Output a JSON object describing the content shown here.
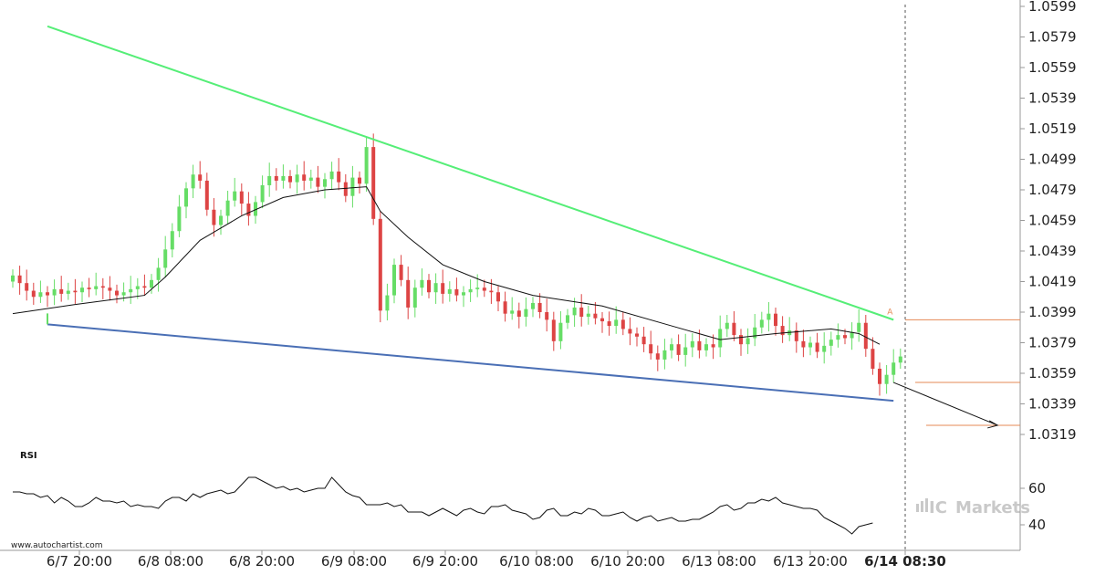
{
  "chart_data": [
    {
      "type": "candlestick",
      "price_ticks": [
        "1.0599",
        "1.0579",
        "1.0559",
        "1.0539",
        "1.0519",
        "1.0499",
        "1.0479",
        "1.0459",
        "1.0439",
        "1.0419",
        "1.0399",
        "1.0379",
        "1.0359",
        "1.0339",
        "1.0319"
      ],
      "ylim": [
        1.0309,
        1.0602
      ],
      "time_labels": [
        "6/7 20:00",
        "6/8 08:00",
        "6/8 20:00",
        "6/9 08:00",
        "6/9 20:00",
        "6/10 08:00",
        "6/10 20:00",
        "6/13 08:00",
        "6/13 20:00",
        "6/14 08:30"
      ],
      "highlight_time": "6/14 08:30",
      "candle_closes": [
        1.0423,
        1.0418,
        1.0413,
        1.0409,
        1.0412,
        1.041,
        1.0414,
        1.0411,
        1.0413,
        1.0412,
        1.0415,
        1.0414,
        1.0416,
        1.0415,
        1.0413,
        1.041,
        1.0412,
        1.0414,
        1.0416,
        1.0415,
        1.042,
        1.0428,
        1.044,
        1.0452,
        1.0468,
        1.048,
        1.0489,
        1.0485,
        1.0466,
        1.0456,
        1.0462,
        1.0472,
        1.0478,
        1.047,
        1.0462,
        1.0471,
        1.0482,
        1.0488,
        1.0485,
        1.0488,
        1.0484,
        1.0489,
        1.0485,
        1.0487,
        1.0481,
        1.0486,
        1.0491,
        1.0484,
        1.0475,
        1.0487,
        1.0483,
        1.0507,
        1.046,
        1.04,
        1.041,
        1.043,
        1.042,
        1.0402,
        1.0415,
        1.042,
        1.0412,
        1.0418,
        1.0411,
        1.0414,
        1.041,
        1.0412,
        1.0414,
        1.0415,
        1.0413,
        1.0412,
        1.0406,
        1.0398,
        1.04,
        1.0396,
        1.0401,
        1.0405,
        1.0399,
        1.0394,
        1.038,
        1.0392,
        1.0397,
        1.0402,
        1.0396,
        1.0398,
        1.0395,
        1.0393,
        1.039,
        1.0394,
        1.0388,
        1.0385,
        1.0383,
        1.0378,
        1.0372,
        1.0368,
        1.0374,
        1.0378,
        1.0371,
        1.0376,
        1.038,
        1.0374,
        1.0378,
        1.0376,
        1.0388,
        1.0392,
        1.0384,
        1.0378,
        1.0382,
        1.0389,
        1.0394,
        1.0398,
        1.039,
        1.0384,
        1.0387,
        1.038,
        1.0376,
        1.0379,
        1.0373,
        1.0377,
        1.0381,
        1.0384,
        1.0382,
        1.0386,
        1.0392,
        1.0375,
        1.0362,
        1.0352,
        1.0358,
        1.0366,
        1.037
      ],
      "moving_average": [
        {
          "t": 0,
          "v": 1.0398
        },
        {
          "t": 9,
          "v": 1.0404
        },
        {
          "t": 19,
          "v": 1.041
        },
        {
          "t": 22,
          "v": 1.0422
        },
        {
          "t": 27,
          "v": 1.0446
        },
        {
          "t": 33,
          "v": 1.0462
        },
        {
          "t": 39,
          "v": 1.0474
        },
        {
          "t": 45,
          "v": 1.0479
        },
        {
          "t": 51,
          "v": 1.0481
        },
        {
          "t": 53,
          "v": 1.0465
        },
        {
          "t": 57,
          "v": 1.0448
        },
        {
          "t": 62,
          "v": 1.043
        },
        {
          "t": 68,
          "v": 1.0419
        },
        {
          "t": 75,
          "v": 1.041
        },
        {
          "t": 85,
          "v": 1.0403
        },
        {
          "t": 95,
          "v": 1.039
        },
        {
          "t": 102,
          "v": 1.0381
        },
        {
          "t": 110,
          "v": 1.0385
        },
        {
          "t": 118,
          "v": 1.0388
        },
        {
          "t": 122,
          "v": 1.0385
        },
        {
          "t": 125,
          "v": 1.0378
        }
      ],
      "resistance_line": {
        "from": {
          "t": 5,
          "v": 1.0586
        },
        "to": {
          "t": 127,
          "v": 1.0394
        }
      },
      "support_line": {
        "from": {
          "t": 5,
          "v": 1.0391
        },
        "to": {
          "t": 127,
          "v": 1.0341
        }
      },
      "projection_arrow": {
        "from": {
          "t": 127,
          "v": 1.0353
        },
        "to": {
          "t": 142,
          "v": 1.0325
        }
      },
      "level_lines": [
        1.0394,
        1.0353,
        1.0325
      ],
      "point_marker": "A",
      "colors": {
        "up": "#66dd66",
        "down": "#dd4444",
        "resistance": "#55ee77",
        "support": "#4a6fb5",
        "levels": "#e58a55",
        "ma": "#111111"
      }
    },
    {
      "type": "line",
      "title": "RSI",
      "yticks": [
        60,
        40
      ],
      "ylim": [
        30,
        75
      ],
      "values": [
        58,
        58,
        57,
        57,
        55,
        56,
        52,
        55,
        53,
        50,
        50,
        52,
        55,
        53,
        53,
        52,
        53,
        50,
        51,
        50,
        50,
        49,
        53,
        55,
        55,
        53,
        57,
        55,
        57,
        58,
        59,
        57,
        58,
        62,
        66,
        66,
        64,
        62,
        60,
        61,
        59,
        60,
        58,
        59,
        60,
        60,
        66,
        62,
        58,
        56,
        55,
        51,
        51,
        51,
        52,
        50,
        51,
        47,
        47,
        47,
        45,
        47,
        49,
        47,
        45,
        48,
        49,
        47,
        46,
        50,
        50,
        51,
        48,
        47,
        46,
        43,
        44,
        48,
        49,
        45,
        45,
        47,
        46,
        49,
        48,
        45,
        45,
        46,
        47,
        44,
        42,
        44,
        45,
        42,
        43,
        44,
        42,
        42,
        43,
        43,
        45,
        47,
        50,
        51,
        48,
        49,
        52,
        52,
        54,
        53,
        55,
        52,
        51,
        50,
        49,
        49,
        48,
        44,
        42,
        40,
        38,
        35,
        39,
        40,
        41
      ]
    }
  ],
  "watermark": {
    "site": "www.autochartist.com",
    "brand": "ICMarkets",
    "brand_prefix": "IC",
    "brand_suffix": "Markets"
  }
}
